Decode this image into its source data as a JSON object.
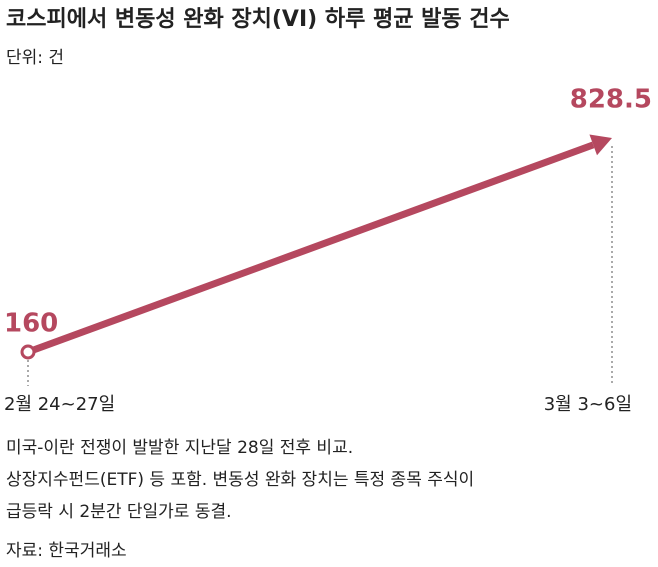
{
  "chart_data": {
    "type": "line",
    "title": "코스피에서 변동성 완화 장치(VI) 하루 평균 발동 건수",
    "subtitle": "단위: 건",
    "categories": [
      "2월 24~27일",
      "3월 3~6일"
    ],
    "values": [
      160,
      828.5
    ],
    "color": "#b5485f",
    "notes": [
      "미국-이란 전쟁이 발발한 지난달 28일 전후 비교.",
      "상장지수펀드(ETF) 등 포함. 변동성 완화 장치는 특정 종목 주식이",
      "급등락 시 2분간 단일가로 동결."
    ],
    "source": "자료: 한국거래소"
  }
}
